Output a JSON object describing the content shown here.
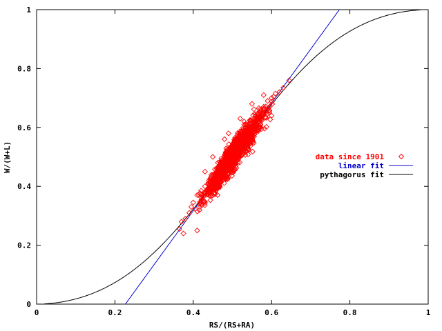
{
  "chart_data": {
    "type": "scatter",
    "title": "",
    "xlabel": "RS/(RS+RA)",
    "ylabel": "W/(W+L)",
    "xlim": [
      0,
      1
    ],
    "ylim": [
      0,
      1
    ],
    "x_ticks": [
      0,
      0.2,
      0.4,
      0.6,
      0.8,
      1
    ],
    "x_tick_labels": [
      "0",
      "0.2",
      "0.4",
      "0.6",
      "0.8",
      "1"
    ],
    "y_ticks": [
      0,
      0.2,
      0.4,
      0.6,
      0.8,
      1
    ],
    "y_tick_labels": [
      "0",
      "0.2",
      "0.4",
      "0.6",
      "0.8",
      "1"
    ],
    "grid": false,
    "legend_position": "right",
    "series": [
      {
        "name": "data since 1901",
        "kind": "points",
        "marker": "diamond",
        "color": "#ff0000",
        "x_range": [
          0.36,
          0.65
        ],
        "y_range": [
          0.24,
          0.76
        ],
        "trend": "approximately along y = 1.83x - 0.415",
        "points": [
          [
            0.365,
            0.255
          ],
          [
            0.37,
            0.28
          ],
          [
            0.38,
            0.29
          ],
          [
            0.39,
            0.31
          ],
          [
            0.395,
            0.33
          ],
          [
            0.4,
            0.345
          ],
          [
            0.41,
            0.37
          ],
          [
            0.42,
            0.385
          ],
          [
            0.43,
            0.4
          ],
          [
            0.44,
            0.42
          ],
          [
            0.45,
            0.44
          ],
          [
            0.46,
            0.46
          ],
          [
            0.47,
            0.48
          ],
          [
            0.48,
            0.5
          ],
          [
            0.49,
            0.52
          ],
          [
            0.5,
            0.54
          ],
          [
            0.51,
            0.555
          ],
          [
            0.52,
            0.575
          ],
          [
            0.53,
            0.59
          ],
          [
            0.54,
            0.61
          ],
          [
            0.55,
            0.625
          ],
          [
            0.56,
            0.64
          ],
          [
            0.57,
            0.655
          ],
          [
            0.58,
            0.67
          ],
          [
            0.59,
            0.69
          ],
          [
            0.6,
            0.7
          ],
          [
            0.61,
            0.715
          ],
          [
            0.62,
            0.72
          ],
          [
            0.63,
            0.735
          ],
          [
            0.645,
            0.76
          ],
          [
            0.375,
            0.24
          ],
          [
            0.41,
            0.25
          ],
          [
            0.42,
            0.34
          ],
          [
            0.44,
            0.37
          ],
          [
            0.45,
            0.5
          ],
          [
            0.46,
            0.4
          ],
          [
            0.48,
            0.56
          ],
          [
            0.5,
            0.47
          ],
          [
            0.52,
            0.63
          ],
          [
            0.54,
            0.55
          ],
          [
            0.55,
            0.68
          ],
          [
            0.57,
            0.6
          ],
          [
            0.58,
            0.71
          ],
          [
            0.6,
            0.64
          ],
          [
            0.43,
            0.45
          ],
          [
            0.47,
            0.44
          ],
          [
            0.49,
            0.58
          ],
          [
            0.51,
            0.5
          ],
          [
            0.53,
            0.62
          ],
          [
            0.56,
            0.6
          ]
        ]
      },
      {
        "name": "linear fit",
        "kind": "line",
        "color": "#0000cc",
        "slope": 1.83,
        "intercept": -0.415
      },
      {
        "name": "pythagorus fit",
        "kind": "line",
        "color": "#000000",
        "formula": "W/(W+L) = p^k / (p^k + (1-p)^k), p = RS/(RS+RA)",
        "exponent": 1.83
      }
    ]
  }
}
